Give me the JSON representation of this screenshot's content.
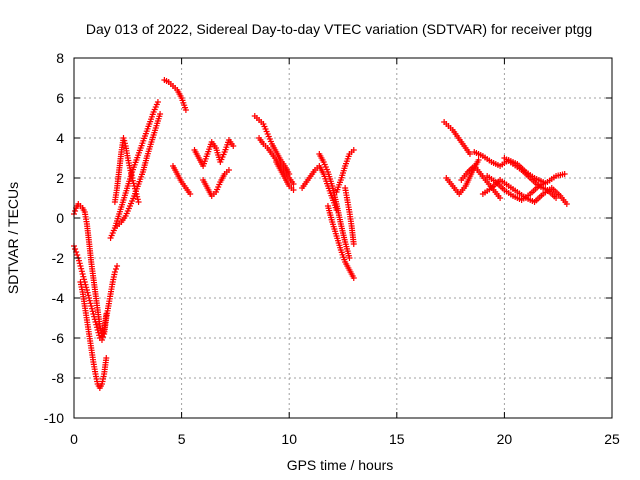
{
  "chart_data": {
    "type": "scatter",
    "title": "Day 013 of 2022, Sidereal Day-to-day VTEC variation (SDTVAR) for receiver ptgg",
    "xlabel": "GPS time / hours",
    "ylabel": "SDTVAR / TECUs",
    "xlim": [
      0,
      25
    ],
    "ylim": [
      -10,
      8
    ],
    "xticks": [
      0,
      5,
      10,
      15,
      20,
      25
    ],
    "yticks": [
      -10,
      -8,
      -6,
      -4,
      -2,
      0,
      2,
      4,
      6,
      8
    ],
    "xtick_labels": [
      "0",
      "5",
      "10",
      "15",
      "20",
      "25"
    ],
    "ytick_labels": [
      "-10",
      "-8",
      "-6",
      "-4",
      "-2",
      "0",
      "2",
      "4",
      "6",
      "8"
    ],
    "grid": true,
    "legend": "none",
    "marker": "plus",
    "color": "#ff0000",
    "series": [
      {
        "x": [
          0.0,
          0.1,
          0.2,
          0.3,
          0.4,
          0.5,
          0.6,
          0.7,
          0.8,
          0.9,
          1.0,
          1.1,
          1.2,
          1.3,
          1.4,
          1.5
        ],
        "y": [
          0.2,
          0.5,
          0.7,
          0.6,
          0.5,
          0.3,
          -0.3,
          -1.2,
          -2.2,
          -3.0,
          -3.8,
          -4.6,
          -5.4,
          -5.9,
          -5.6,
          -4.8
        ]
      },
      {
        "x": [
          0.0,
          0.1,
          0.2,
          0.3,
          0.4,
          0.5,
          0.6,
          0.7,
          0.8,
          0.9,
          1.0,
          1.1,
          1.2,
          1.3,
          1.4,
          1.5,
          1.6,
          1.7,
          1.8,
          1.9,
          2.0
        ],
        "y": [
          -1.4,
          -1.7,
          -2.0,
          -2.4,
          -2.8,
          -3.2,
          -3.6,
          -4.0,
          -4.4,
          -4.8,
          -5.2,
          -5.6,
          -6.0,
          -6.1,
          -5.8,
          -5.0,
          -4.4,
          -3.8,
          -3.2,
          -2.7,
          -2.4
        ]
      },
      {
        "x": [
          0.3,
          0.4,
          0.5,
          0.6,
          0.7,
          0.8,
          0.9,
          1.0,
          1.1,
          1.2,
          1.3,
          1.4,
          1.5
        ],
        "y": [
          -3.2,
          -3.7,
          -4.4,
          -5.1,
          -5.8,
          -6.5,
          -7.2,
          -7.8,
          -8.3,
          -8.5,
          -8.3,
          -7.8,
          -7.0
        ]
      },
      {
        "x": [
          1.7,
          1.9,
          2.1,
          2.3,
          2.5,
          2.7,
          2.9,
          3.1,
          3.3,
          3.5,
          3.7,
          3.9
        ],
        "y": [
          -1.0,
          -0.5,
          0.2,
          0.9,
          1.6,
          2.3,
          2.9,
          3.5,
          4.1,
          4.7,
          5.3,
          5.8
        ]
      },
      {
        "x": [
          2.0,
          2.2,
          2.4,
          2.6,
          2.8,
          3.0,
          3.2,
          3.4,
          3.6,
          3.8,
          4.0
        ],
        "y": [
          -0.4,
          -0.2,
          0.1,
          0.6,
          1.1,
          1.7,
          2.3,
          3.1,
          3.8,
          4.5,
          5.2
        ]
      },
      {
        "x": [
          1.9,
          2.0,
          2.1,
          2.2,
          2.3,
          2.4,
          2.5,
          2.6,
          2.7,
          2.8,
          2.9,
          3.0
        ],
        "y": [
          0.8,
          1.5,
          2.4,
          3.3,
          4.0,
          3.6,
          3.0,
          2.5,
          2.0,
          1.6,
          1.2,
          0.8
        ]
      },
      {
        "x": [
          4.2,
          4.4,
          4.6,
          4.8,
          5.0,
          5.2
        ],
        "y": [
          6.9,
          6.8,
          6.6,
          6.4,
          6.0,
          5.4
        ]
      },
      {
        "x": [
          4.6,
          4.8,
          5.0,
          5.2,
          5.4
        ],
        "y": [
          2.6,
          2.2,
          1.8,
          1.5,
          1.2
        ]
      },
      {
        "x": [
          5.6,
          5.8,
          6.0,
          6.2,
          6.4,
          6.6,
          6.8,
          7.0,
          7.2,
          7.4
        ],
        "y": [
          3.4,
          3.0,
          2.6,
          3.2,
          3.8,
          3.5,
          2.8,
          3.3,
          3.9,
          3.6
        ]
      },
      {
        "x": [
          6.0,
          6.2,
          6.4,
          6.6,
          6.8,
          7.0,
          7.2
        ],
        "y": [
          1.9,
          1.5,
          1.1,
          1.3,
          1.8,
          2.2,
          2.4
        ]
      },
      {
        "x": [
          8.4,
          8.6,
          8.8,
          9.0,
          9.2,
          9.4,
          9.6,
          9.8,
          10.0
        ],
        "y": [
          5.1,
          4.9,
          4.7,
          4.2,
          3.7,
          3.3,
          2.9,
          2.6,
          2.2
        ]
      },
      {
        "x": [
          8.6,
          8.8,
          9.0,
          9.2,
          9.4,
          9.6,
          9.8,
          10.0,
          10.2
        ],
        "y": [
          4.0,
          3.7,
          3.5,
          3.2,
          2.9,
          2.6,
          2.3,
          2.0,
          1.7
        ]
      },
      {
        "x": [
          9.4,
          9.6,
          9.8,
          10.0,
          10.2
        ],
        "y": [
          2.8,
          2.4,
          2.0,
          1.6,
          1.4
        ]
      },
      {
        "x": [
          10.6,
          10.8,
          11.0,
          11.2,
          11.4,
          11.6,
          11.8,
          12.0,
          12.2
        ],
        "y": [
          1.5,
          1.8,
          2.1,
          2.4,
          2.6,
          2.2,
          1.6,
          1.0,
          0.4
        ]
      },
      {
        "x": [
          11.4,
          11.6,
          11.8,
          12.0,
          12.2,
          12.4,
          12.6,
          12.8
        ],
        "y": [
          3.2,
          2.8,
          2.3,
          1.6,
          0.7,
          -0.3,
          -1.2,
          -2.0
        ]
      },
      {
        "x": [
          11.8,
          12.0,
          12.2,
          12.4,
          12.6,
          12.8,
          13.0
        ],
        "y": [
          0.6,
          -0.2,
          -0.9,
          -1.6,
          -2.2,
          -2.6,
          -3.0
        ]
      },
      {
        "x": [
          12.2,
          12.4,
          12.6,
          12.8,
          13.0
        ],
        "y": [
          1.3,
          1.9,
          2.6,
          3.2,
          3.4
        ]
      },
      {
        "x": [
          12.6,
          12.7,
          12.8,
          12.9,
          13.0
        ],
        "y": [
          1.5,
          0.9,
          0.3,
          -0.4,
          -1.3
        ]
      },
      {
        "x": [
          17.2,
          17.4,
          17.6,
          17.8,
          18.0,
          18.2,
          18.4
        ],
        "y": [
          4.8,
          4.6,
          4.4,
          4.1,
          3.8,
          3.5,
          3.2
        ]
      },
      {
        "x": [
          17.3,
          17.6,
          17.9,
          18.2,
          18.5,
          18.8
        ],
        "y": [
          2.0,
          1.6,
          1.2,
          1.6,
          2.3,
          2.9
        ]
      },
      {
        "x": [
          18.0,
          18.3,
          18.6,
          18.9,
          19.2,
          19.5,
          19.8
        ],
        "y": [
          1.9,
          2.3,
          2.6,
          2.2,
          1.8,
          1.4,
          1.0
        ]
      },
      {
        "x": [
          18.6,
          19.0,
          19.4,
          19.8,
          20.2,
          20.6,
          21.0,
          21.4,
          21.8
        ],
        "y": [
          3.3,
          3.1,
          2.8,
          2.6,
          2.9,
          2.7,
          2.3,
          2.0,
          1.8
        ]
      },
      {
        "x": [
          19.0,
          19.4,
          19.8,
          20.2,
          20.6,
          21.0,
          21.4,
          21.8,
          22.2,
          22.6,
          22.9
        ],
        "y": [
          1.2,
          1.5,
          1.9,
          1.6,
          1.3,
          1.0,
          0.8,
          1.2,
          1.5,
          1.1,
          0.7
        ]
      },
      {
        "x": [
          20.0,
          20.4,
          20.8,
          21.2,
          21.6,
          22.0,
          22.4,
          22.8
        ],
        "y": [
          3.0,
          2.7,
          2.4,
          2.0,
          1.6,
          1.8,
          2.1,
          2.2
        ]
      },
      {
        "x": [
          19.2,
          19.6,
          20.0,
          20.4,
          20.8,
          21.2,
          21.6,
          22.0,
          22.4
        ],
        "y": [
          2.1,
          1.8,
          1.4,
          1.1,
          0.9,
          1.2,
          1.6,
          1.4,
          1.0
        ]
      }
    ]
  }
}
